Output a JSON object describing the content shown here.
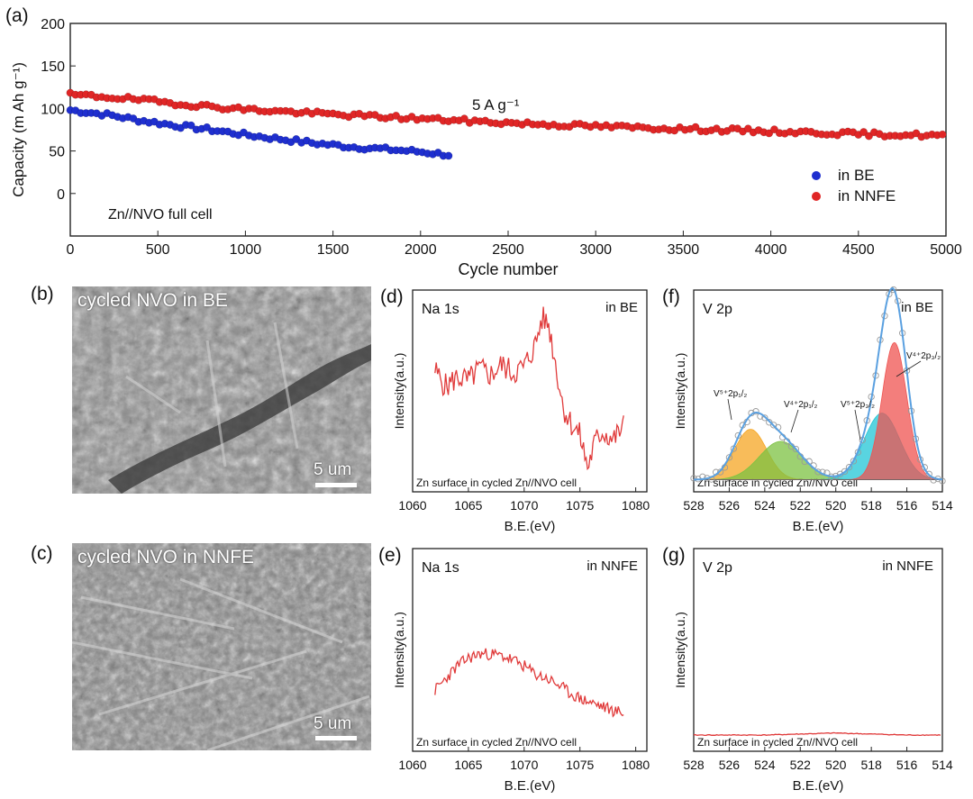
{
  "panel_labels": {
    "a": "(a)",
    "b": "(b)",
    "c": "(c)",
    "d": "(d)",
    "e": "(e)",
    "f": "(f)",
    "g": "(g)"
  },
  "sem": {
    "b": {
      "label": "cycled NVO in BE",
      "scale": "5 um"
    },
    "c": {
      "label": "cycled NVO in NNFE",
      "scale": "5 um"
    }
  },
  "colors": {
    "BE": "#1f2fcf",
    "NNFE": "#e02626",
    "xps_line": "#e03a3a",
    "fit_envelope": "#5aa0e0",
    "peak_orange": "#f5a623",
    "peak_green": "#7cc242",
    "peak_cyan": "#22c5d6",
    "peak_red": "#ef5350"
  },
  "chart_data": [
    {
      "id": "a",
      "type": "scatter",
      "xlabel": "Cycle number",
      "ylabel": "Capacity (m Ah g⁻¹)",
      "xlim": [
        0,
        5000
      ],
      "ylim": [
        -50,
        200
      ],
      "xticks": [
        0,
        500,
        1000,
        1500,
        2000,
        2500,
        3000,
        3500,
        4000,
        4500,
        5000
      ],
      "yticks": [
        0,
        50,
        100,
        150,
        200
      ],
      "legend_position": "right",
      "annotations": [
        "5 A g⁻¹",
        "Zn//NVO full cell"
      ],
      "series": [
        {
          "name": "in BE",
          "color": "blue",
          "x": [
            0,
            200,
            400,
            600,
            800,
            1000,
            1200,
            1400,
            1600,
            1800,
            2000,
            2180
          ],
          "y": [
            98,
            93,
            86,
            80,
            75,
            69,
            64,
            59,
            55,
            52,
            49,
            45
          ]
        },
        {
          "name": "in NNFE",
          "color": "red",
          "x": [
            0,
            250,
            500,
            750,
            1000,
            1500,
            2000,
            2500,
            3000,
            3500,
            4000,
            4500,
            5000
          ],
          "y": [
            116,
            113,
            108,
            103,
            99,
            93,
            88,
            83,
            79,
            76,
            73,
            70,
            68
          ]
        }
      ]
    },
    {
      "id": "d",
      "type": "line",
      "title": "Na 1s",
      "corner_label": "in BE",
      "note": "Zn surface in  cycled Zn//NVO cell",
      "xlabel": "B.E.(eV)",
      "ylabel": "Intensity(a.u.)",
      "xlim": [
        1060,
        1081
      ],
      "xticks": [
        1060,
        1065,
        1070,
        1075,
        1080
      ],
      "ylim": [
        0,
        1
      ],
      "x": [
        1062,
        1063,
        1064,
        1065,
        1066,
        1067,
        1068,
        1069,
        1070,
        1071,
        1071.6,
        1072.2,
        1072.8,
        1073.5,
        1074.2,
        1075,
        1075.7,
        1076.3,
        1077,
        1078,
        1079
      ],
      "y": [
        0.6,
        0.52,
        0.57,
        0.55,
        0.61,
        0.58,
        0.63,
        0.59,
        0.62,
        0.73,
        0.86,
        0.83,
        0.64,
        0.42,
        0.34,
        0.28,
        0.12,
        0.24,
        0.3,
        0.26,
        0.33
      ]
    },
    {
      "id": "e",
      "type": "line",
      "title": "Na 1s",
      "corner_label": "in NNFE",
      "note": "Zn surface in  cycled Zn//NVO cell",
      "xlabel": "B.E.(eV)",
      "ylabel": "Intensity(a.u.)",
      "xlim": [
        1060,
        1081
      ],
      "xticks": [
        1060,
        1065,
        1070,
        1075,
        1080
      ],
      "ylim": [
        0,
        1
      ],
      "x": [
        1062,
        1063,
        1064,
        1065,
        1066,
        1067,
        1068,
        1069,
        1070,
        1071,
        1072,
        1073,
        1074,
        1075,
        1076,
        1077,
        1078,
        1079
      ],
      "y": [
        0.3,
        0.36,
        0.42,
        0.46,
        0.48,
        0.48,
        0.47,
        0.45,
        0.42,
        0.38,
        0.36,
        0.33,
        0.29,
        0.26,
        0.24,
        0.22,
        0.2,
        0.19
      ]
    },
    {
      "id": "f",
      "type": "line",
      "title": "V 2p",
      "corner_label": "in BE",
      "note": "Zn surface in  cycled Zn//NVO cell",
      "xlabel": "B.E.(eV)",
      "ylabel": "Intensity(a.u.)",
      "xlim": [
        528,
        514
      ],
      "xticks": [
        528,
        526,
        524,
        522,
        520,
        518,
        516,
        514
      ],
      "ylim": [
        0,
        1
      ],
      "baseline": 0.06,
      "peaks": [
        {
          "label": "V⁵⁺2p₁/₂",
          "center": 524.8,
          "height": 0.25,
          "width": 0.9,
          "color": "orange"
        },
        {
          "label": "V⁴⁺2p₁/₂",
          "center": 523.1,
          "height": 0.19,
          "width": 1.2,
          "color": "green"
        },
        {
          "label": "V⁵⁺2p₃/₂",
          "center": 517.4,
          "height": 0.33,
          "width": 1.0,
          "color": "cyan"
        },
        {
          "label": "V⁴⁺2p₃/₂",
          "center": 516.7,
          "height": 0.68,
          "width": 0.7,
          "color": "red"
        }
      ]
    },
    {
      "id": "g",
      "type": "line",
      "title": "V 2p",
      "corner_label": "in NNFE",
      "note": "Zn surface in  cycled Zn//NVO cell",
      "xlabel": "B.E.(eV)",
      "ylabel": "Intensity(a.u.)",
      "xlim": [
        528,
        514
      ],
      "xticks": [
        528,
        526,
        524,
        522,
        520,
        518,
        516,
        514
      ],
      "ylim": [
        0,
        1
      ],
      "x": [
        528,
        524,
        520,
        516,
        514
      ],
      "y": [
        0.08,
        0.08,
        0.09,
        0.08,
        0.08
      ]
    }
  ]
}
